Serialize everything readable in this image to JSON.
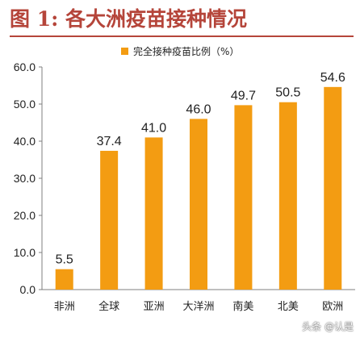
{
  "header": {
    "title": "图 1:  各大洲疫苗接种情况"
  },
  "chart_data": {
    "type": "bar",
    "title": "图 1:  各大洲疫苗接种情况",
    "categories": [
      "非洲",
      "全球",
      "亚洲",
      "大洋洲",
      "南美",
      "北美",
      "欧洲"
    ],
    "series": [
      {
        "name": "完全接种疫苗比例（%）",
        "values": [
          5.5,
          37.4,
          41.0,
          46.0,
          49.7,
          50.5,
          54.6
        ],
        "value_labels": [
          "5.5",
          "37.4",
          "41.0",
          "46.0",
          "49.7",
          "50.5",
          "54.6"
        ],
        "color": "#f39c12"
      }
    ],
    "ylim": [
      0,
      60
    ],
    "yticks": [
      "0.0",
      "10.0",
      "20.0",
      "30.0",
      "40.0",
      "50.0",
      "60.0"
    ],
    "grid": false,
    "legend": "top",
    "xlabel": "",
    "ylabel": ""
  },
  "watermark": {
    "text": "头条 @认是"
  }
}
